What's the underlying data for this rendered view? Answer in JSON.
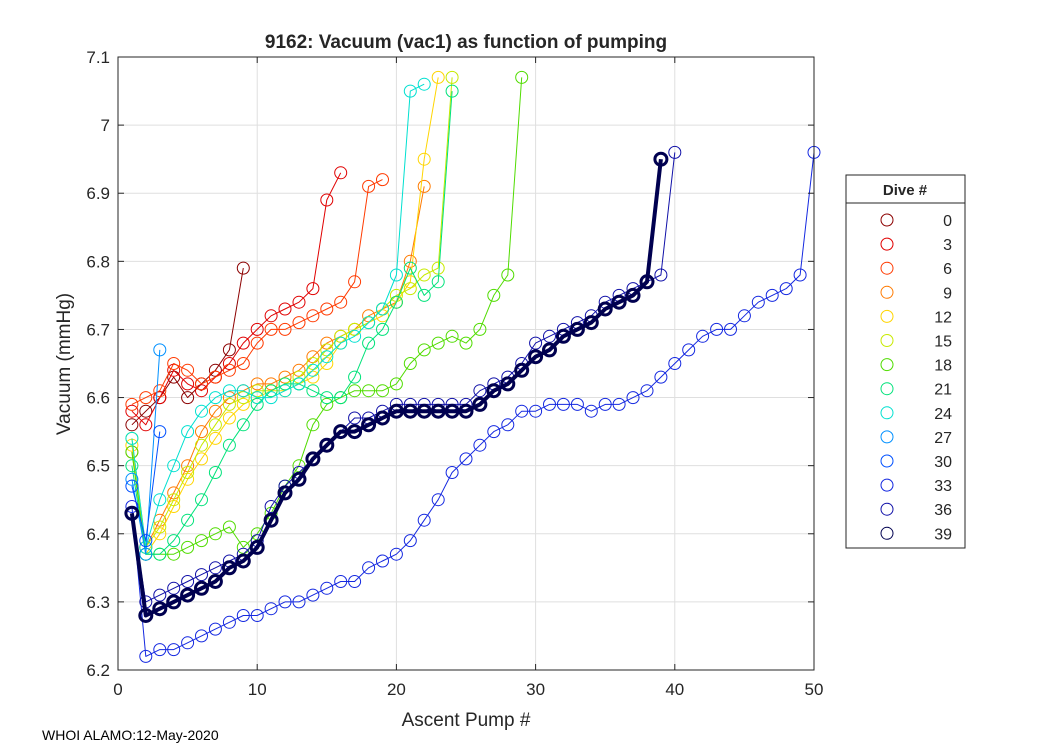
{
  "chart_data": {
    "type": "line",
    "title": "9162: Vacuum (vac1) as function of pumping",
    "xlabel": "Ascent Pump #",
    "ylabel": "Vacuum (mmHg)",
    "xlim": [
      0,
      50
    ],
    "ylim": [
      6.2,
      7.1
    ],
    "x_ticks": [
      "0",
      "10",
      "20",
      "30",
      "40",
      "50"
    ],
    "y_ticks": [
      "6.2",
      "6.3",
      "6.4",
      "6.5",
      "6.6",
      "6.7",
      "6.8",
      "6.9",
      "7",
      "7.1"
    ],
    "grid": true,
    "legend_title": "Dive #",
    "legend_position": "outside-right",
    "series": [
      {
        "name": "0",
        "color": "#8c0000",
        "x": [
          1,
          2,
          3,
          4,
          5,
          6,
          7,
          8,
          9
        ],
        "y": [
          6.56,
          6.58,
          6.6,
          6.63,
          6.6,
          6.62,
          6.64,
          6.67,
          6.79
        ]
      },
      {
        "name": "3",
        "color": "#e00000",
        "x": [
          1,
          2,
          3,
          4,
          5,
          6,
          7,
          8,
          9,
          10,
          11,
          12,
          13,
          14,
          15,
          16
        ],
        "y": [
          6.58,
          6.56,
          6.6,
          6.64,
          6.62,
          6.61,
          6.63,
          6.65,
          6.68,
          6.7,
          6.72,
          6.73,
          6.74,
          6.76,
          6.89,
          6.93
        ]
      },
      {
        "name": "6",
        "color": "#ff3a00",
        "x": [
          1,
          2,
          3,
          4,
          5,
          6,
          7,
          8,
          9,
          10,
          11,
          12,
          13,
          14,
          15,
          16,
          17,
          18,
          19
        ],
        "y": [
          6.59,
          6.6,
          6.61,
          6.65,
          6.64,
          6.62,
          6.63,
          6.64,
          6.65,
          6.68,
          6.7,
          6.7,
          6.71,
          6.72,
          6.73,
          6.74,
          6.77,
          6.91,
          6.92
        ]
      },
      {
        "name": "9",
        "color": "#ff7a00",
        "x": [
          1,
          2,
          3,
          4,
          5,
          6,
          7,
          8,
          9,
          10,
          11,
          12,
          13,
          14,
          15,
          16,
          17,
          18,
          19,
          20,
          21,
          22
        ],
        "y": [
          6.52,
          6.38,
          6.42,
          6.46,
          6.5,
          6.55,
          6.58,
          6.6,
          6.61,
          6.62,
          6.62,
          6.63,
          6.64,
          6.66,
          6.68,
          6.69,
          6.7,
          6.72,
          6.73,
          6.74,
          6.8,
          6.91
        ]
      },
      {
        "name": "12",
        "color": "#ffd500",
        "x": [
          1,
          2,
          3,
          4,
          5,
          6,
          7,
          8,
          9,
          10,
          11,
          12,
          13,
          14,
          15,
          16,
          17,
          18,
          19,
          20,
          21,
          22,
          23
        ],
        "y": [
          6.53,
          6.37,
          6.4,
          6.44,
          6.48,
          6.51,
          6.54,
          6.57,
          6.59,
          6.6,
          6.61,
          6.61,
          6.62,
          6.63,
          6.65,
          6.68,
          6.7,
          6.71,
          6.72,
          6.74,
          6.77,
          6.95,
          7.07
        ]
      },
      {
        "name": "15",
        "color": "#c8ea00",
        "x": [
          1,
          2,
          3,
          4,
          5,
          6,
          7,
          8,
          9,
          10,
          11,
          12,
          13,
          14,
          15,
          16,
          17,
          18,
          19,
          20,
          21,
          22,
          23,
          24
        ],
        "y": [
          6.54,
          6.38,
          6.41,
          6.45,
          6.49,
          6.53,
          6.56,
          6.59,
          6.6,
          6.61,
          6.61,
          6.62,
          6.63,
          6.65,
          6.67,
          6.69,
          6.7,
          6.71,
          6.73,
          6.75,
          6.76,
          6.78,
          6.79,
          7.07
        ]
      },
      {
        "name": "18",
        "color": "#50dc00",
        "x": [
          1,
          2,
          3,
          4,
          5,
          6,
          7,
          8,
          9,
          10,
          11,
          12,
          13,
          14,
          15,
          16,
          17,
          18,
          19,
          20,
          21,
          22,
          23,
          24,
          25,
          26,
          27,
          28,
          29
        ],
        "y": [
          6.52,
          6.37,
          6.37,
          6.37,
          6.38,
          6.39,
          6.4,
          6.41,
          6.38,
          6.4,
          6.43,
          6.47,
          6.5,
          6.56,
          6.59,
          6.6,
          6.61,
          6.61,
          6.61,
          6.62,
          6.65,
          6.67,
          6.68,
          6.69,
          6.68,
          6.7,
          6.75,
          6.78,
          7.07
        ]
      },
      {
        "name": "21",
        "color": "#00e27a",
        "x": [
          1,
          2,
          3,
          4,
          5,
          6,
          7,
          8,
          9,
          10,
          11,
          12,
          13,
          14,
          15,
          16,
          17,
          18,
          19,
          20,
          21,
          22,
          23,
          24
        ],
        "y": [
          6.5,
          6.37,
          6.37,
          6.39,
          6.42,
          6.45,
          6.49,
          6.53,
          6.56,
          6.59,
          6.61,
          6.62,
          6.62,
          6.61,
          6.6,
          6.6,
          6.63,
          6.68,
          6.7,
          6.74,
          6.79,
          6.75,
          6.77,
          7.05
        ]
      },
      {
        "name": "24",
        "color": "#00e0d0",
        "x": [
          1,
          2,
          3,
          4,
          5,
          6,
          7,
          8,
          9,
          10,
          11,
          12,
          13,
          14,
          15,
          16,
          17,
          18,
          19,
          20,
          21,
          22
        ],
        "y": [
          6.54,
          6.38,
          6.45,
          6.5,
          6.55,
          6.58,
          6.6,
          6.61,
          6.61,
          6.6,
          6.6,
          6.61,
          6.62,
          6.64,
          6.66,
          6.68,
          6.69,
          6.71,
          6.73,
          6.78,
          7.05,
          7.06
        ]
      },
      {
        "name": "27",
        "color": "#0090ff",
        "x": [
          1,
          2,
          3
        ],
        "y": [
          6.48,
          6.37,
          6.67
        ]
      },
      {
        "name": "30",
        "color": "#0050ff",
        "x": [
          1,
          2,
          3
        ],
        "y": [
          6.47,
          6.39,
          6.55
        ]
      },
      {
        "name": "33",
        "color": "#1428e0",
        "x": [
          1,
          2,
          3,
          4,
          5,
          6,
          7,
          8,
          9,
          10,
          11,
          12,
          13,
          14,
          15,
          16,
          17,
          18,
          19,
          20,
          21,
          22,
          23,
          24,
          25,
          26,
          27,
          28,
          29,
          30,
          31,
          32,
          33,
          34,
          35,
          36,
          37,
          38,
          39,
          40,
          41,
          42,
          43,
          44,
          45,
          46,
          47,
          48,
          49,
          50
        ],
        "y": [
          6.44,
          6.22,
          6.23,
          6.23,
          6.24,
          6.25,
          6.26,
          6.27,
          6.28,
          6.28,
          6.29,
          6.3,
          6.3,
          6.31,
          6.32,
          6.33,
          6.33,
          6.35,
          6.36,
          6.37,
          6.39,
          6.42,
          6.45,
          6.49,
          6.51,
          6.53,
          6.55,
          6.56,
          6.58,
          6.58,
          6.59,
          6.59,
          6.59,
          6.58,
          6.59,
          6.59,
          6.6,
          6.61,
          6.63,
          6.65,
          6.67,
          6.69,
          6.7,
          6.7,
          6.72,
          6.74,
          6.75,
          6.76,
          6.78,
          6.96
        ]
      },
      {
        "name": "36",
        "color": "#1010a8",
        "x": [
          1,
          2,
          3,
          4,
          5,
          6,
          7,
          8,
          9,
          10,
          11,
          12,
          13,
          14,
          15,
          16,
          17,
          18,
          19,
          20,
          21,
          22,
          23,
          24,
          25,
          26,
          27,
          28,
          29,
          30,
          31,
          32,
          33,
          34,
          35,
          36,
          37,
          38,
          39,
          40
        ],
        "y": [
          6.43,
          6.3,
          6.31,
          6.32,
          6.33,
          6.34,
          6.35,
          6.36,
          6.37,
          6.39,
          6.44,
          6.47,
          6.49,
          6.51,
          6.53,
          6.55,
          6.57,
          6.57,
          6.58,
          6.59,
          6.59,
          6.59,
          6.59,
          6.59,
          6.59,
          6.61,
          6.62,
          6.63,
          6.65,
          6.68,
          6.69,
          6.7,
          6.71,
          6.72,
          6.74,
          6.75,
          6.76,
          6.77,
          6.78,
          6.96
        ]
      },
      {
        "name": "39",
        "color": "#000050",
        "bold": true,
        "x": [
          1,
          2,
          3,
          4,
          5,
          6,
          7,
          8,
          9,
          10,
          11,
          12,
          13,
          14,
          15,
          16,
          17,
          18,
          19,
          20,
          21,
          22,
          23,
          24,
          25,
          26,
          27,
          28,
          29,
          30,
          31,
          32,
          33,
          34,
          35,
          36,
          37,
          38,
          39
        ],
        "y": [
          6.43,
          6.28,
          6.29,
          6.3,
          6.31,
          6.32,
          6.33,
          6.35,
          6.36,
          6.38,
          6.42,
          6.46,
          6.48,
          6.51,
          6.53,
          6.55,
          6.55,
          6.56,
          6.57,
          6.58,
          6.58,
          6.58,
          6.58,
          6.58,
          6.58,
          6.59,
          6.61,
          6.62,
          6.64,
          6.66,
          6.67,
          6.69,
          6.7,
          6.71,
          6.73,
          6.74,
          6.75,
          6.77,
          6.95
        ]
      }
    ]
  },
  "footer": {
    "text": "WHOI ALAMO:12-May-2020"
  }
}
